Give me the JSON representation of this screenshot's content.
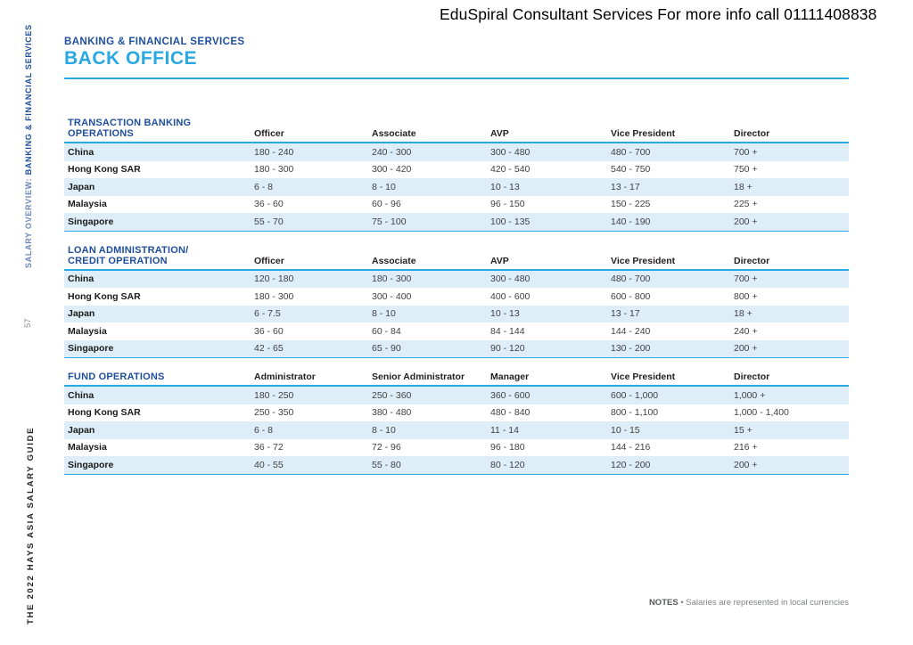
{
  "header": {
    "banner": "EduSpiral Consultant Services For more info call 01111408838"
  },
  "sidebar": {
    "overview_prefix": "SALARY OVERVIEW: ",
    "overview_section": "BANKING & FINANCIAL SERVICES",
    "page_number": "57",
    "guide_label": "THE 2022 HAYS ASIA SALARY GUIDE"
  },
  "section": {
    "category": "BANKING & FINANCIAL SERVICES",
    "title": "BACK OFFICE"
  },
  "colors": {
    "navy": "#1e4e9c",
    "cyan": "#29a9e2",
    "row_stripe": "#ddeef8"
  },
  "tables": [
    {
      "title_lines": [
        "TRANSACTION BANKING OPERATIONS"
      ],
      "columns": [
        "Officer",
        "Associate",
        "AVP",
        "Vice President",
        "Director"
      ],
      "rows": [
        {
          "country": "China",
          "values": [
            "180 - 240",
            "240 - 300",
            "300 - 480",
            "480 - 700",
            "700 +"
          ]
        },
        {
          "country": "Hong Kong SAR",
          "values": [
            "180 - 300",
            "300 - 420",
            "420 - 540",
            "540 - 750",
            "750 +"
          ]
        },
        {
          "country": "Japan",
          "values": [
            "6 - 8",
            "8 - 10",
            "10 - 13",
            "13 - 17",
            "18 +"
          ]
        },
        {
          "country": "Malaysia",
          "values": [
            "36 - 60",
            "60 - 96",
            "96 - 150",
            "150 - 225",
            "225 +"
          ]
        },
        {
          "country": "Singapore",
          "values": [
            "55 - 70",
            "75 - 100",
            "100 - 135",
            "140 - 190",
            "200 +"
          ]
        }
      ]
    },
    {
      "title_lines": [
        "LOAN ADMINISTRATION/",
        "CREDIT OPERATION"
      ],
      "columns": [
        "Officer",
        "Associate",
        "AVP",
        "Vice President",
        "Director"
      ],
      "rows": [
        {
          "country": "China",
          "values": [
            "120 - 180",
            "180 - 300",
            "300 - 480",
            "480 - 700",
            "700 +"
          ]
        },
        {
          "country": "Hong Kong SAR",
          "values": [
            "180 - 300",
            "300 - 400",
            "400 - 600",
            "600 - 800",
            "800 +"
          ]
        },
        {
          "country": "Japan",
          "values": [
            "6 - 7.5",
            "8 - 10",
            "10 - 13",
            "13 - 17",
            "18 +"
          ]
        },
        {
          "country": "Malaysia",
          "values": [
            "36 - 60",
            "60 - 84",
            "84 - 144",
            "144 - 240",
            "240 +"
          ]
        },
        {
          "country": "Singapore",
          "values": [
            "42 - 65",
            "65 - 90",
            "90 - 120",
            "130 - 200",
            "200 +"
          ]
        }
      ]
    },
    {
      "title_lines": [
        "FUND OPERATIONS"
      ],
      "columns": [
        "Administrator",
        "Senior Administrator",
        "Manager",
        "Vice President",
        "Director"
      ],
      "rows": [
        {
          "country": "China",
          "values": [
            "180 - 250",
            "250 - 360",
            "360 - 600",
            "600 - 1,000",
            "1,000 +"
          ]
        },
        {
          "country": "Hong Kong SAR",
          "values": [
            "250 - 350",
            "380 - 480",
            "480 - 840",
            "800 - 1,100",
            "1,000 - 1,400"
          ]
        },
        {
          "country": "Japan",
          "values": [
            "6 - 8",
            "8 - 10",
            "11 - 14",
            "10 - 15",
            "15 +"
          ]
        },
        {
          "country": "Malaysia",
          "values": [
            "36 - 72",
            "72 - 96",
            "96 - 180",
            "144 - 216",
            "216 +"
          ]
        },
        {
          "country": "Singapore",
          "values": [
            "40 - 55",
            "55 - 80",
            "80 - 120",
            "120 - 200",
            "200 +"
          ]
        }
      ]
    }
  ],
  "notes": {
    "label": "NOTES",
    "bullet": "•",
    "text": "Salaries are represented in local currencies"
  }
}
